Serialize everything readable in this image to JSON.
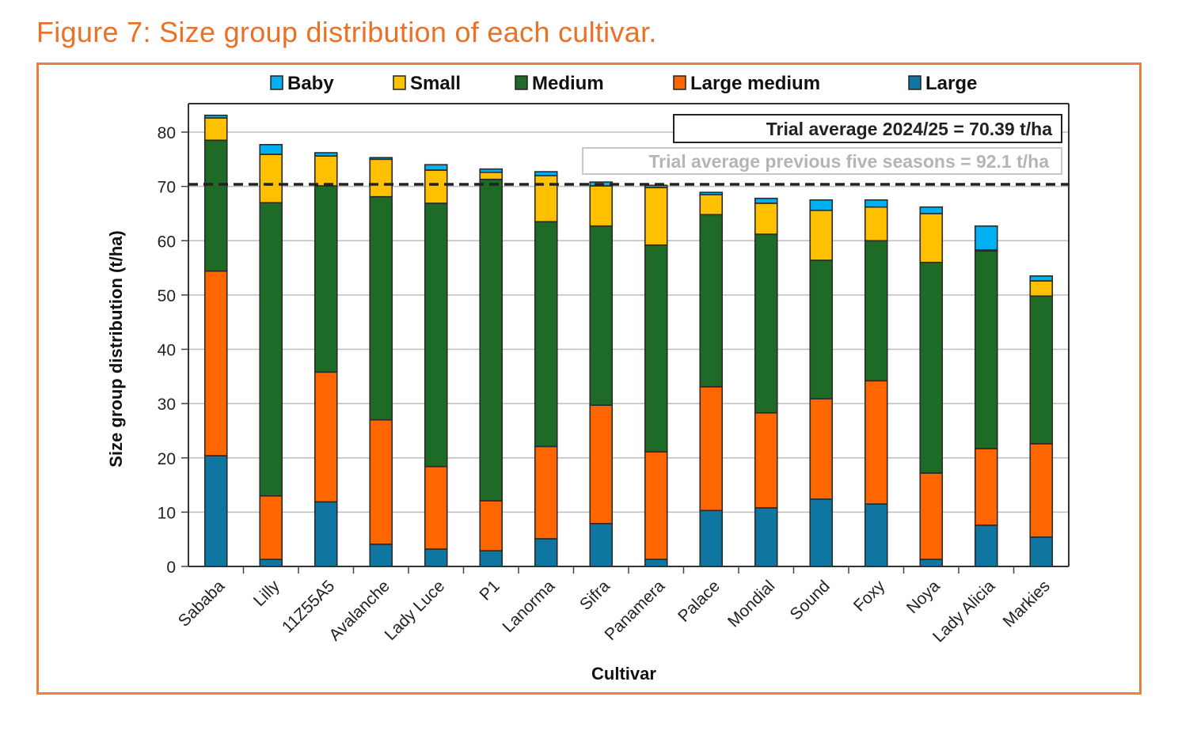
{
  "figure": {
    "title": "Figure 7: Size group distribution of each cultivar."
  },
  "colors": {
    "title": "#ea7125",
    "frame": "#ef7d3c",
    "Baby": "#00b0f0",
    "Small": "#ffc000",
    "Medium": "#1e6b27",
    "Large medium": "#ff6600",
    "Large": "#0e76a0"
  },
  "chart_data": {
    "type": "bar",
    "stacked": true,
    "title": "",
    "xlabel": "Cultivar",
    "ylabel": "Size group distribution (t/ha)",
    "ylim": [
      0,
      83
    ],
    "yticks": [
      0,
      10,
      20,
      30,
      40,
      50,
      60,
      70,
      80
    ],
    "grid": true,
    "legend_position": "top",
    "legend": [
      "Baby",
      "Small",
      "Medium",
      "Large medium",
      "Large"
    ],
    "categories": [
      "Sababa",
      "Lilly",
      "11Z55A5",
      "Avalanche",
      "Lady Luce",
      "P1",
      "Lanorma",
      "Sifra",
      "Panamera",
      "Palace",
      "Mondial",
      "Sound",
      "Foxy",
      "Noya",
      "Lady Alicia",
      "Markies"
    ],
    "series": [
      {
        "name": "Large",
        "values": [
          20.4,
          1.3,
          11.9,
          4.1,
          3.2,
          2.9,
          5.1,
          7.9,
          1.3,
          10.3,
          10.8,
          12.4,
          11.5,
          1.3,
          7.6,
          5.4
        ]
      },
      {
        "name": "Large medium",
        "values": [
          34.0,
          11.7,
          23.9,
          22.9,
          15.2,
          9.2,
          17.0,
          21.8,
          19.8,
          22.8,
          17.5,
          18.5,
          22.7,
          15.9,
          14.1,
          17.2
        ]
      },
      {
        "name": "Medium",
        "values": [
          24.1,
          54.0,
          34.3,
          41.1,
          48.5,
          59.2,
          41.4,
          33.0,
          38.1,
          31.7,
          32.9,
          25.5,
          25.8,
          38.8,
          36.4,
          27.2
        ]
      },
      {
        "name": "Small",
        "values": [
          4.1,
          8.9,
          5.5,
          6.9,
          6.1,
          1.3,
          8.5,
          7.4,
          10.6,
          3.7,
          5.7,
          9.2,
          6.2,
          9.0,
          0.2,
          2.8
        ]
      },
      {
        "name": "Baby",
        "values": [
          0.5,
          1.8,
          0.6,
          0.3,
          1.0,
          0.6,
          0.7,
          0.7,
          0.4,
          0.4,
          0.9,
          1.9,
          1.3,
          1.2,
          4.4,
          0.9
        ]
      }
    ],
    "reference_lines": [
      {
        "label": "Trial average 2024/25 = 70.39 t/ha",
        "value": 70.39,
        "style": "dashed"
      }
    ],
    "annotations": [
      "Trial average 2024/25 = 70.39 t/ha",
      "Trial average previous five seasons = 92.1 t/ha"
    ]
  }
}
